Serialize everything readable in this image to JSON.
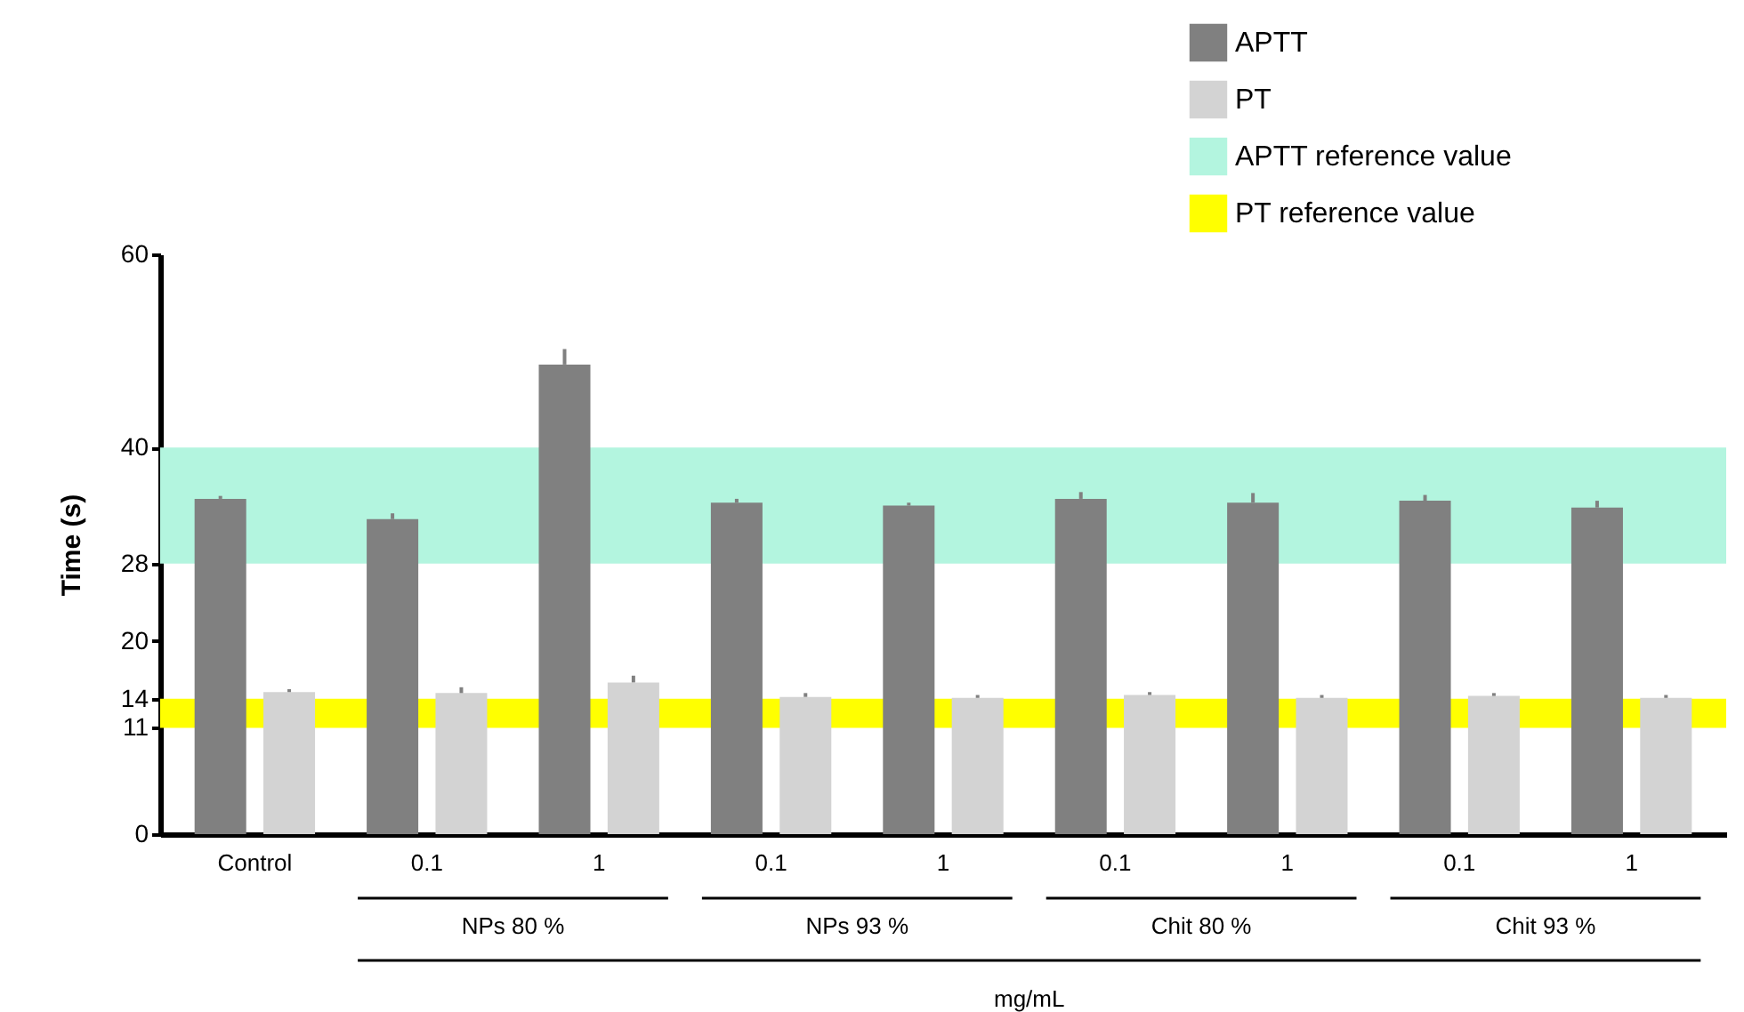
{
  "chart_data": {
    "type": "bar",
    "xlabel": "mg/mL",
    "ylabel": "Time (s)",
    "categories": [
      "Control",
      "0.1",
      "1",
      "0.1",
      "1",
      "0.1",
      "1",
      "0.1",
      "1"
    ],
    "series": [
      {
        "name": "APTT",
        "color": "#808080",
        "values": [
          34.7,
          32.6,
          48.6,
          34.3,
          34.0,
          34.7,
          34.3,
          34.5,
          33.8
        ],
        "errors": [
          [
            34.7,
            35.0
          ],
          [
            32.6,
            33.2
          ],
          [
            48.6,
            50.2
          ],
          [
            34.3,
            34.7
          ],
          [
            34.0,
            34.3
          ],
          [
            34.7,
            35.4
          ],
          [
            34.3,
            35.3
          ],
          [
            34.5,
            35.1
          ],
          [
            33.8,
            34.5
          ]
        ]
      },
      {
        "name": "PT",
        "color": "#d3d3d3",
        "values": [
          14.7,
          14.6,
          15.7,
          14.2,
          14.1,
          14.4,
          14.1,
          14.3,
          14.1
        ],
        "errors": [
          [
            14.7,
            15.0
          ],
          [
            14.6,
            15.2
          ],
          [
            15.7,
            16.4
          ],
          [
            14.2,
            14.6
          ],
          [
            14.1,
            14.4
          ],
          [
            14.4,
            14.7
          ],
          [
            14.1,
            14.4
          ],
          [
            14.3,
            14.6
          ],
          [
            14.1,
            14.4
          ]
        ]
      }
    ],
    "bands": [
      {
        "axis": "y",
        "from": 28,
        "to": 40,
        "label": "APTT reference value",
        "color": "#b3f5df"
      },
      {
        "axis": "y",
        "from": 11,
        "to": 14,
        "label": "PT reference value",
        "color": "#ffff00"
      }
    ],
    "annotations": [
      "NPs 80 %",
      "NPs 93 %",
      "Chit 80 %",
      "Chit 93 %"
    ],
    "ylim": [
      0,
      60
    ],
    "yticks": [
      0,
      11,
      14,
      20,
      28,
      40,
      60
    ],
    "legend": "top right"
  }
}
